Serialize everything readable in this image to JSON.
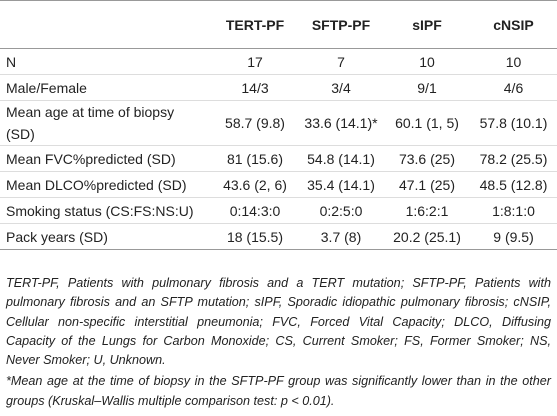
{
  "table": {
    "columns": [
      "TERT-PF",
      "SFTP-PF",
      "sIPF",
      "cNSIP"
    ],
    "rows": [
      {
        "label": "N",
        "cells": [
          "17",
          "7",
          "10",
          "10"
        ]
      },
      {
        "label": "Male/Female",
        "cells": [
          "14/3",
          "3/4",
          "9/1",
          "4/6"
        ]
      },
      {
        "label": "Mean age at time of biopsy (SD)",
        "cells": [
          "58.7 (9.8)",
          "33.6 (14.1)*",
          "60.1 (1, 5)",
          "57.8 (10.1)"
        ]
      },
      {
        "label": "Mean FVC%predicted (SD)",
        "cells": [
          "81 (15.6)",
          "54.8 (14.1)",
          "73.6 (25)",
          "78.2 (25.5)"
        ]
      },
      {
        "label": "Mean DLCO%predicted (SD)",
        "cells": [
          "43.6 (2, 6)",
          "35.4 (14.1)",
          "47.1 (25)",
          "48.5 (12.8)"
        ]
      },
      {
        "label": "Smoking status (CS:FS:NS:U)",
        "cells": [
          "0:14:3:0",
          "0:2:5:0",
          "1:6:2:1",
          "1:8:1:0"
        ]
      },
      {
        "label": "Pack years (SD)",
        "cells": [
          "18 (15.5)",
          "3.7 (8)",
          "20.2 (25.1)",
          "9 (9.5)"
        ]
      }
    ]
  },
  "notes": [
    "TERT-PF, Patients with pulmonary fibrosis and a TERT mutation; SFTP-PF, Patients with pulmonary fibrosis and an SFTP mutation; sIPF, Sporadic idiopathic pulmonary fibrosis; cNSIP, Cellular non-specific interstitial pneumonia; FVC, Forced Vital Capacity; DLCO, Diffusing Capacity of the Lungs for Carbon Monoxide; CS, Current Smoker; FS, Former Smoker; NS, Never Smoker; U, Unknown.",
    "*Mean age at the time of biopsy in the SFTP-PF group was significantly lower than in the other groups (Kruskal–Wallis multiple comparison test: p < 0.01)."
  ]
}
